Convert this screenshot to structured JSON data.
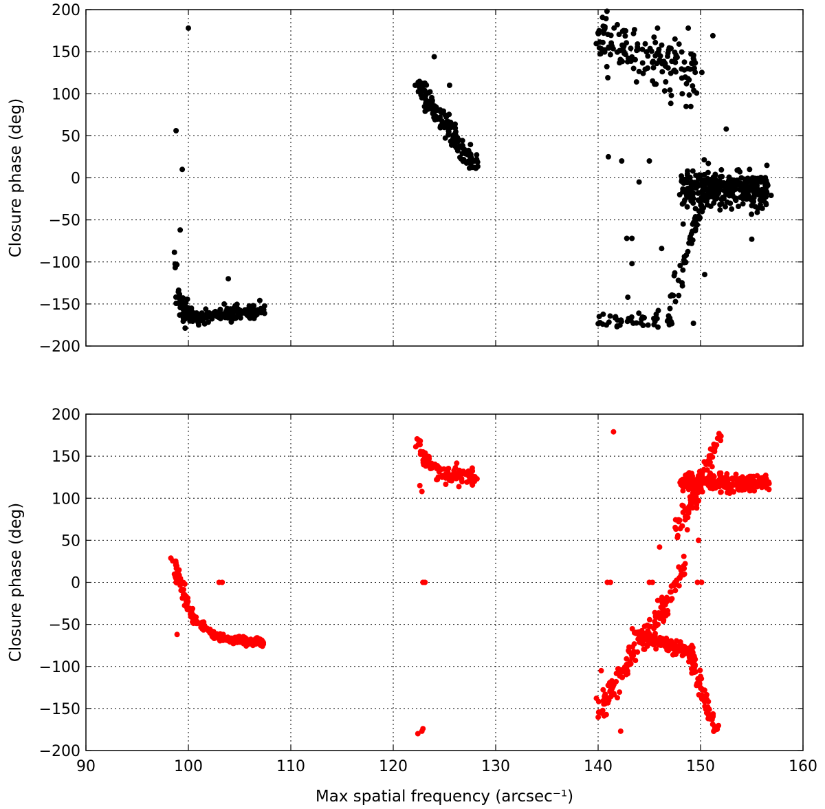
{
  "chart_data": [
    {
      "type": "scatter",
      "color": "#000000",
      "ylabel": "Closure phase (deg)",
      "xlabel": "",
      "xlim": [
        90,
        160
      ],
      "ylim": [
        -200,
        200
      ],
      "xticks": [
        "90",
        "100",
        "110",
        "120",
        "130",
        "140",
        "150",
        "160"
      ],
      "yticks": [
        "200",
        "150",
        "100",
        "50",
        "0",
        "−50",
        "−100",
        "−150",
        "−200"
      ],
      "show_xtick_labels": false,
      "grid": true,
      "clusters": [
        {
          "x0": 98.6,
          "x1": 100.2,
          "y0": -70,
          "y1": -165,
          "curve": "decay",
          "noise": 12,
          "n": 35
        },
        {
          "x0": 100.0,
          "x1": 107.4,
          "y0": -165,
          "y1": -158,
          "curve": "linear",
          "noise": 7,
          "n": 170
        },
        {
          "x0": 122.3,
          "x1": 128.2,
          "y0": 110,
          "y1": 12,
          "curve": "linear",
          "noise": 12,
          "n": 150
        },
        {
          "x0": 140.0,
          "x1": 150.0,
          "y0": 165,
          "y1": 120,
          "curve": "linear",
          "noise": 30,
          "n": 150
        },
        {
          "x0": 148.0,
          "x1": 156.6,
          "y0": -10,
          "y1": -15,
          "curve": "linear",
          "noise": 18,
          "n": 330
        },
        {
          "x0": 147.0,
          "x1": 150.5,
          "y0": -150,
          "y1": -20,
          "curve": "linear",
          "noise": 18,
          "n": 45
        },
        {
          "x0": 140.0,
          "x1": 147.5,
          "y0": -170,
          "y1": -170,
          "curve": "linear",
          "noise": 9,
          "n": 45
        }
      ],
      "points": [
        [
          100.0,
          178
        ],
        [
          98.8,
          56
        ],
        [
          99.4,
          10
        ],
        [
          99.2,
          -62
        ],
        [
          101.0,
          -175
        ],
        [
          103.9,
          -120
        ],
        [
          103.5,
          -150
        ],
        [
          124.0,
          144
        ],
        [
          125.5,
          110
        ],
        [
          151.2,
          169
        ],
        [
          142.8,
          -72
        ],
        [
          143.3,
          -72
        ],
        [
          143.3,
          -102
        ],
        [
          142.9,
          -142
        ],
        [
          146.2,
          -84
        ],
        [
          149.3,
          -173
        ],
        [
          150.4,
          -115
        ],
        [
          141.0,
          25
        ],
        [
          142.3,
          20
        ],
        [
          144.0,
          -5
        ],
        [
          145.0,
          20
        ],
        [
          152.5,
          58
        ],
        [
          155.0,
          -73
        ],
        [
          150.3,
          -25
        ],
        [
          148.3,
          -55
        ],
        [
          145.8,
          178
        ],
        [
          147.5,
          165
        ],
        [
          148.8,
          178
        ]
      ]
    },
    {
      "type": "scatter",
      "color": "#ff0000",
      "ylabel": "Closure phase (deg)",
      "xlabel": "Max spatial frequency (arcsec⁻¹)",
      "xlim": [
        90,
        160
      ],
      "ylim": [
        -200,
        200
      ],
      "xticks": [
        "90",
        "100",
        "110",
        "120",
        "130",
        "140",
        "150",
        "160"
      ],
      "yticks": [
        "200",
        "150",
        "100",
        "50",
        "0",
        "−50",
        "−100",
        "−150",
        "−200"
      ],
      "show_xtick_labels": true,
      "grid": true,
      "clusters": [
        {
          "x0": 98.5,
          "x1": 107.3,
          "y0": 30,
          "y1": -72,
          "curve": "decay",
          "noise": 4,
          "n": 220
        },
        {
          "x0": 122.4,
          "x1": 128.0,
          "y0": 170,
          "y1": 125,
          "curve": "decay",
          "noise": 9,
          "n": 110
        },
        {
          "x0": 148.0,
          "x1": 156.6,
          "y0": 120,
          "y1": 118,
          "curve": "linear",
          "noise": 9,
          "n": 320
        },
        {
          "x0": 147.5,
          "x1": 150.0,
          "y0": 60,
          "y1": 110,
          "curve": "linear",
          "noise": 14,
          "n": 45
        },
        {
          "x0": 150.5,
          "x1": 152.0,
          "y0": 135,
          "y1": 175,
          "curve": "linear",
          "noise": 8,
          "n": 30
        },
        {
          "x0": 140.0,
          "x1": 146.5,
          "y0": -150,
          "y1": -30,
          "curve": "linear",
          "noise": 14,
          "n": 120
        },
        {
          "x0": 143.5,
          "x1": 149.5,
          "y0": -60,
          "y1": -85,
          "curve": "linear",
          "noise": 6,
          "n": 160
        },
        {
          "x0": 149.0,
          "x1": 151.5,
          "y0": -90,
          "y1": -175,
          "curve": "linear",
          "noise": 9,
          "n": 70
        },
        {
          "x0": 146.0,
          "x1": 148.5,
          "y0": -40,
          "y1": 20,
          "curve": "linear",
          "noise": 10,
          "n": 45
        }
      ],
      "points": [
        [
          98.8,
          0
        ],
        [
          99.2,
          0
        ],
        [
          99.5,
          0
        ],
        [
          98.9,
          -62
        ],
        [
          103.0,
          0
        ],
        [
          103.3,
          0
        ],
        [
          122.9,
          0
        ],
        [
          123.1,
          0
        ],
        [
          122.4,
          -180
        ],
        [
          122.8,
          -177
        ],
        [
          122.9,
          -174
        ],
        [
          122.6,
          115
        ],
        [
          122.8,
          108
        ],
        [
          141.5,
          179
        ],
        [
          140.9,
          0
        ],
        [
          141.2,
          0
        ],
        [
          145.0,
          0
        ],
        [
          145.3,
          0
        ],
        [
          147.5,
          0
        ],
        [
          149.7,
          0
        ],
        [
          150.1,
          0
        ],
        [
          146.0,
          42
        ],
        [
          149.8,
          50
        ],
        [
          140.3,
          -105
        ],
        [
          142.2,
          -177
        ]
      ]
    }
  ]
}
